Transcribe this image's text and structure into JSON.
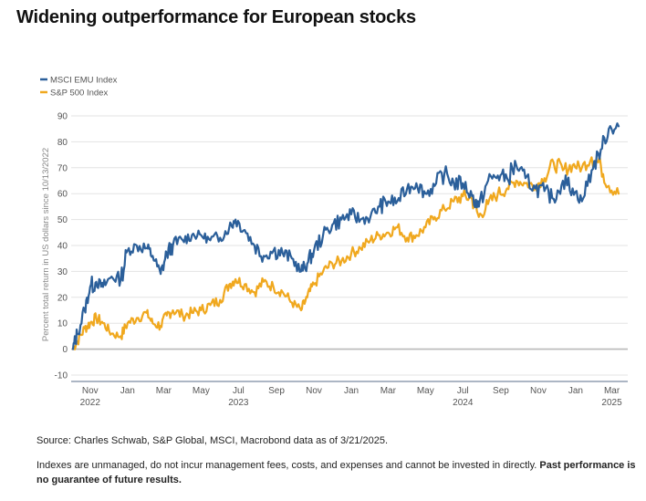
{
  "title": "Widening outperformance for European stocks",
  "source": "Source: Charles Schwab, S&P Global, MSCI, Macrobond data as of 3/21/2025.",
  "disclaimer": "Indexes are unmanaged, do not incur management fees, costs, and expenses and cannot be invested in directly.",
  "disclaimer_bold": "Past performance is no guarantee of future results.",
  "chart_data": {
    "type": "line",
    "ylabel": "Percent total return in US dollars since 10/13/2022",
    "xlabel": "",
    "ylim": [
      -10,
      90
    ],
    "yticks": [
      -10,
      0,
      10,
      20,
      30,
      40,
      50,
      60,
      70,
      80,
      90
    ],
    "grid": true,
    "legend_position": "top-left",
    "xtick_labels": [
      {
        "label": "Nov",
        "year": "2022"
      },
      {
        "label": "Jan",
        "year": ""
      },
      {
        "label": "Mar",
        "year": ""
      },
      {
        "label": "May",
        "year": ""
      },
      {
        "label": "Jul",
        "year": "2023"
      },
      {
        "label": "Sep",
        "year": ""
      },
      {
        "label": "Nov",
        "year": ""
      },
      {
        "label": "Jan",
        "year": ""
      },
      {
        "label": "Mar",
        "year": ""
      },
      {
        "label": "May",
        "year": ""
      },
      {
        "label": "Jul",
        "year": "2024"
      },
      {
        "label": "Sep",
        "year": ""
      },
      {
        "label": "Nov",
        "year": ""
      },
      {
        "label": "Jan",
        "year": ""
      },
      {
        "label": "Mar",
        "year": "2025"
      }
    ],
    "x": [
      "2022-10-13",
      "2022-10-20",
      "2022-11-01",
      "2022-11-10",
      "2022-11-20",
      "2022-12-01",
      "2022-12-15",
      "2022-12-30",
      "2023-01-10",
      "2023-01-25",
      "2023-02-10",
      "2023-02-20",
      "2023-03-05",
      "2023-03-15",
      "2023-03-25",
      "2023-04-10",
      "2023-04-25",
      "2023-05-10",
      "2023-05-25",
      "2023-06-10",
      "2023-06-25",
      "2023-07-05",
      "2023-07-20",
      "2023-08-05",
      "2023-08-20",
      "2023-09-05",
      "2023-09-20",
      "2023-10-05",
      "2023-10-20",
      "2023-10-30",
      "2023-11-10",
      "2023-11-25",
      "2023-12-10",
      "2023-12-25",
      "2024-01-10",
      "2024-01-25",
      "2024-02-10",
      "2024-02-25",
      "2024-03-10",
      "2024-03-25",
      "2024-04-10",
      "2024-04-25",
      "2024-05-10",
      "2024-05-25",
      "2024-06-10",
      "2024-06-25",
      "2024-07-10",
      "2024-07-25",
      "2024-08-05",
      "2024-08-20",
      "2024-09-05",
      "2024-09-20",
      "2024-10-05",
      "2024-10-20",
      "2024-11-05",
      "2024-11-20",
      "2024-12-05",
      "2024-12-20",
      "2025-01-05",
      "2025-01-20",
      "2025-02-05",
      "2025-02-20",
      "2025-03-05",
      "2025-03-21"
    ],
    "series": [
      {
        "name": "MSCI EMU Index",
        "color": "#2b5f9a",
        "values": [
          0,
          6,
          15,
          24,
          26,
          24,
          28,
          27,
          38,
          40,
          39,
          36,
          29,
          37,
          40,
          42,
          44,
          44,
          42,
          43,
          47,
          50,
          46,
          40,
          36,
          38,
          37,
          35,
          30,
          33,
          38,
          44,
          48,
          50,
          52,
          50,
          51,
          55,
          57,
          57,
          62,
          64,
          60,
          63,
          68,
          64,
          64,
          59,
          55,
          65,
          67,
          66,
          71,
          66,
          62,
          61,
          58,
          65,
          62,
          57,
          69,
          77,
          85,
          86
        ],
        "ymin": [
          0,
          2,
          12,
          21,
          22,
          22,
          24,
          23,
          32,
          37,
          36,
          33,
          28,
          33,
          36,
          38,
          41,
          42,
          40,
          40,
          44,
          45,
          42,
          37,
          32,
          34,
          33,
          31,
          28,
          30,
          34,
          40,
          44,
          46,
          48,
          47,
          48,
          51,
          53,
          54,
          58,
          60,
          57,
          60,
          63,
          60,
          60,
          55,
          51,
          60,
          62,
          62,
          66,
          62,
          58,
          57,
          55,
          60,
          57,
          55,
          64,
          73,
          80,
          82
        ],
        "ymax": [
          2,
          9,
          19,
          27,
          30,
          27,
          30,
          29,
          41,
          42,
          42,
          39,
          33,
          40,
          43,
          45,
          46,
          46,
          44,
          46,
          49,
          51,
          48,
          43,
          39,
          40,
          40,
          37,
          33,
          36,
          41,
          47,
          50,
          53,
          54,
          53,
          53,
          57,
          60,
          60,
          64,
          66,
          63,
          66,
          71,
          67,
          67,
          61,
          58,
          67,
          70,
          69,
          75,
          68,
          65,
          64,
          62,
          67,
          65,
          60,
          72,
          80,
          87,
          88
        ]
      },
      {
        "name": "S&P 500 Index",
        "color": "#f0a81e",
        "values": [
          0,
          3,
          8,
          10,
          12,
          10,
          6,
          5,
          10,
          12,
          14,
          10,
          9,
          13,
          15,
          13,
          14,
          15,
          17,
          19,
          25,
          27,
          25,
          22,
          26,
          24,
          22,
          18,
          15,
          20,
          25,
          30,
          33,
          34,
          37,
          39,
          42,
          44,
          45,
          47,
          43,
          44,
          47,
          51,
          54,
          57,
          59,
          58,
          51,
          56,
          60,
          62,
          65,
          64,
          63,
          66,
          72,
          69,
          71,
          70,
          74,
          71,
          63,
          60
        ],
        "ymin": [
          -2,
          1,
          5,
          7,
          9,
          7,
          4,
          3,
          7,
          9,
          11,
          8,
          6,
          10,
          12,
          10,
          11,
          12,
          14,
          16,
          22,
          24,
          22,
          19,
          23,
          21,
          19,
          15,
          13,
          17,
          22,
          27,
          30,
          31,
          34,
          36,
          39,
          41,
          42,
          44,
          40,
          41,
          44,
          48,
          51,
          54,
          55,
          54,
          46,
          53,
          56,
          58,
          62,
          61,
          60,
          63,
          68,
          65,
          67,
          67,
          70,
          66,
          57,
          56
        ],
        "ymax": [
          1,
          5,
          10,
          12,
          14,
          12,
          8,
          7,
          12,
          14,
          16,
          12,
          11,
          15,
          17,
          15,
          16,
          17,
          19,
          21,
          27,
          29,
          27,
          24,
          28,
          26,
          24,
          20,
          17,
          22,
          27,
          32,
          35,
          36,
          39,
          41,
          44,
          46,
          47,
          49,
          45,
          46,
          49,
          53,
          56,
          59,
          61,
          60,
          54,
          59,
          62,
          64,
          67,
          66,
          65,
          68,
          74,
          72,
          73,
          72,
          76,
          74,
          66,
          62
        ]
      }
    ]
  }
}
